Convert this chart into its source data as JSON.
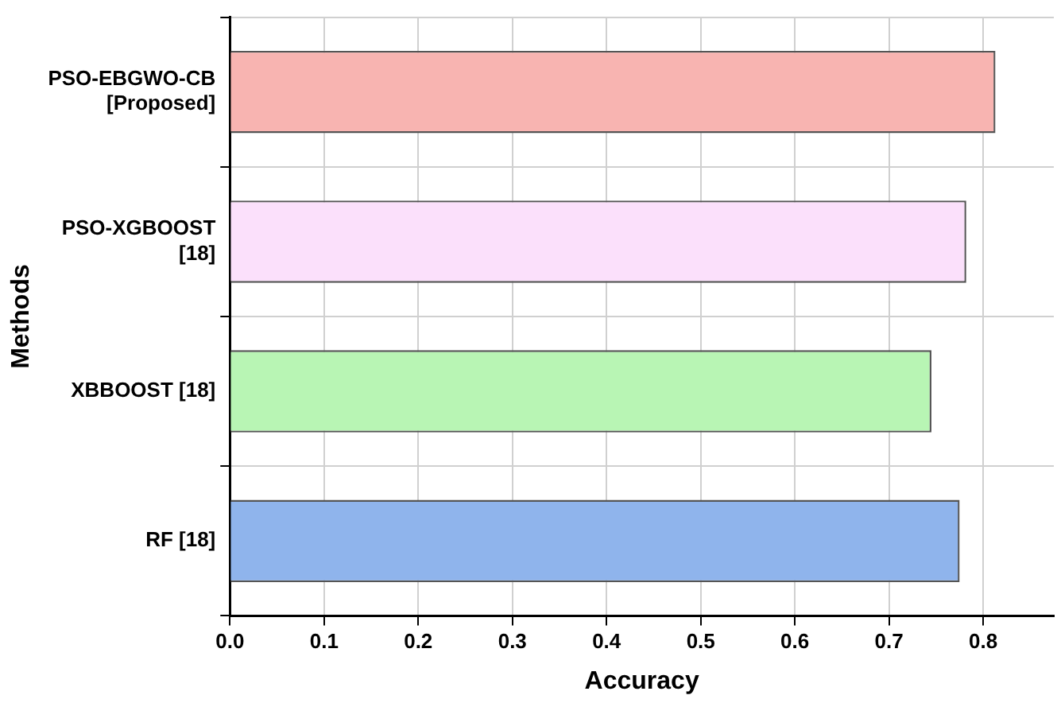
{
  "chart_data": {
    "type": "bar",
    "orientation": "horizontal",
    "xlabel": "Accuracy",
    "ylabel": "Methods",
    "categories": [
      "PSO-EBGWO-CB\n[Proposed]",
      "PSO-XGBOOST\n[18]",
      "XBBOOST [18]",
      "RF [18]"
    ],
    "values": [
      0.813,
      0.782,
      0.745,
      0.775
    ],
    "colors": [
      "#f8b4b1",
      "#fbe0fb",
      "#b8f5b4",
      "#8fb4ec"
    ],
    "xlim": [
      0,
      0.875
    ],
    "xticks": [
      {
        "value": 0,
        "label": "0.0"
      },
      0.1,
      0.2,
      0.3,
      0.4,
      0.5,
      0.6,
      0.7,
      0.8
    ],
    "grid": true,
    "legend": false
  }
}
